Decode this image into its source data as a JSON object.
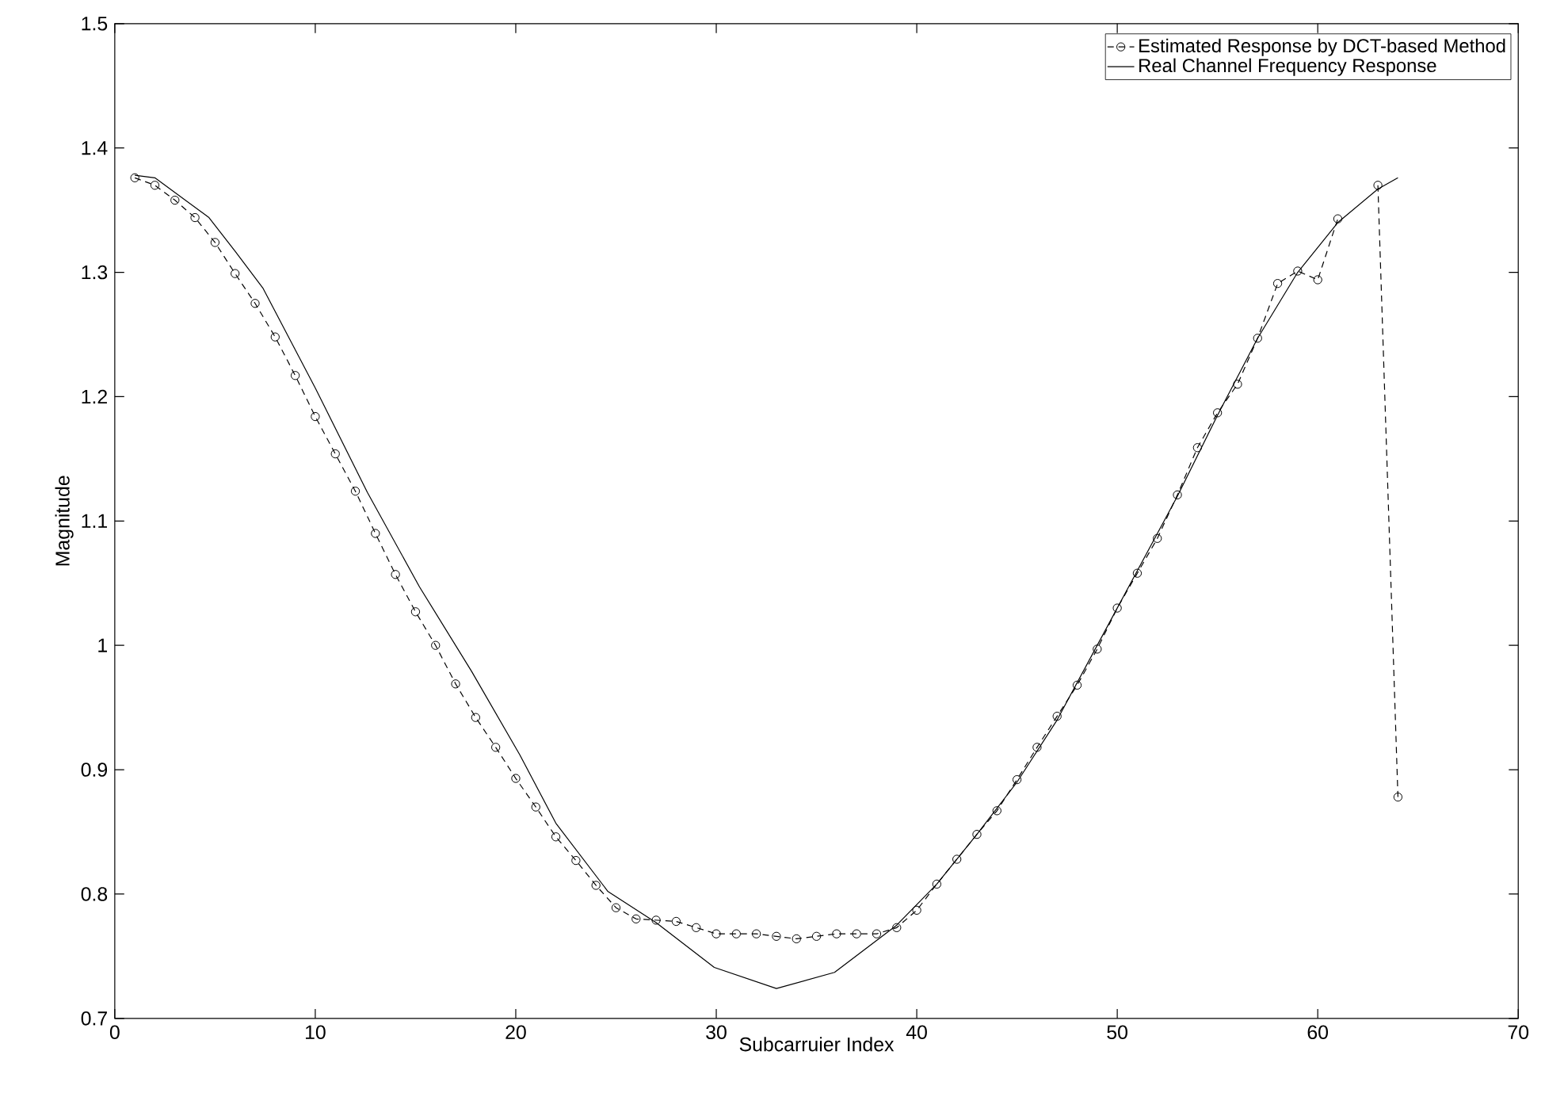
{
  "chart_data": {
    "type": "line",
    "xlabel": "Subcarruier Index",
    "ylabel": "Magnitude",
    "xlim": [
      0,
      70
    ],
    "ylim": [
      0.7,
      1.5
    ],
    "xticks": [
      0,
      10,
      20,
      30,
      40,
      50,
      60,
      70
    ],
    "yticks": [
      0.7,
      0.8,
      0.9,
      1,
      1.1,
      1.2,
      1.3,
      1.4,
      1.5
    ],
    "grid": false,
    "legend": "top right",
    "series": [
      {
        "name": "Estimated Response by DCT-based Method",
        "color": "#000000",
        "marker": "circle",
        "line_style": "dashed",
        "x": [
          1,
          2,
          3,
          4,
          5,
          6,
          7,
          8,
          9,
          10,
          11,
          12,
          13,
          14,
          15,
          16,
          17,
          18,
          19,
          20,
          21,
          22,
          23,
          24,
          25,
          26,
          27,
          28,
          29,
          30,
          31,
          32,
          33,
          34,
          35,
          36,
          37,
          38,
          39,
          40,
          41,
          42,
          43,
          44,
          45,
          46,
          47,
          48,
          49,
          50,
          51,
          52,
          53,
          54,
          55,
          56,
          57,
          58,
          59,
          60,
          61,
          62,
          63,
          64
        ],
        "values": [
          1.376,
          1.37,
          1.358,
          1.344,
          1.324,
          1.299,
          1.275,
          1.248,
          1.217,
          1.184,
          1.154,
          1.124,
          1.09,
          1.057,
          1.027,
          1.0,
          0.969,
          0.942,
          0.918,
          0.893,
          0.87,
          0.846,
          0.827,
          0.807,
          0.789,
          0.78,
          0.779,
          0.778,
          0.773,
          0.768,
          0.768,
          0.768,
          0.766,
          0.764,
          0.766,
          0.768,
          0.768,
          0.768,
          0.773,
          0.787,
          0.808,
          0.828,
          0.848,
          0.867,
          0.892,
          0.918,
          0.943,
          0.968,
          0.997,
          1.03,
          1.058,
          1.086,
          1.121,
          1.159,
          1.187,
          1.21,
          1.247,
          1.291,
          1.301,
          1.294,
          1.343,
          null,
          1.37,
          0.878
        ]
      },
      {
        "name": "Real Channel Frequency Response",
        "color": "#000000",
        "marker": "none",
        "line_style": "solid",
        "x": [
          1,
          2,
          4.7,
          6,
          7.4,
          10,
          12.6,
          15.2,
          17.8,
          20.2,
          22,
          24.6,
          27,
          29.9,
          33,
          35.9,
          39,
          41,
          43,
          45,
          47,
          50,
          53,
          55,
          57,
          59,
          61,
          63,
          64
        ],
        "values": [
          1.378,
          1.376,
          1.344,
          1.317,
          1.287,
          1.207,
          1.123,
          1.047,
          0.979,
          0.912,
          0.857,
          0.802,
          0.777,
          0.741,
          0.724,
          0.737,
          0.775,
          0.808,
          0.848,
          0.89,
          0.94,
          1.03,
          1.12,
          1.185,
          1.247,
          1.3,
          1.34,
          1.367,
          1.376
        ]
      }
    ]
  }
}
